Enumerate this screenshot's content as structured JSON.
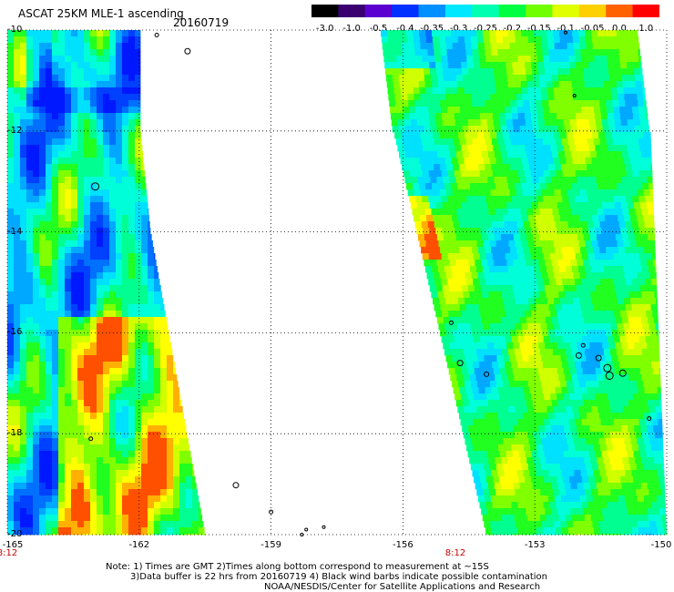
{
  "header": {
    "title": "ASCAT 25KM MLE-1 ascending",
    "date": "20160719"
  },
  "colorbar": {
    "labels": [
      "-3.0",
      "-1.0",
      "-0.5",
      "-0.4",
      "-0.35",
      "-0.3",
      "-0.25",
      "-0.2",
      "-0.15",
      "-0.1",
      "-0.05",
      "0.0",
      "1.0"
    ],
    "colors": [
      "#000000",
      "#3a0070",
      "#5a00d0",
      "#0030ff",
      "#0090ff",
      "#00e8ff",
      "#00ffb0",
      "#00ff40",
      "#70ff00",
      "#e0ff00",
      "#ffd000",
      "#ff6000",
      "#ff0000"
    ]
  },
  "axes": {
    "lat_labels": [
      "-10",
      "-12",
      "-14",
      "-16",
      "-18",
      "-20"
    ],
    "lon_labels": [
      "-165",
      "-162",
      "-159",
      "-156",
      "-153",
      "-150"
    ],
    "lat_range": [
      -20,
      -10
    ],
    "lon_range": [
      -165,
      -150
    ]
  },
  "time_labels": [
    {
      "text": "8:12",
      "lon": -165
    },
    {
      "text": "8:12",
      "lon": -154.3
    }
  ],
  "notes": [
    "Note: 1) Times are GMT 2)Times along bottom correspond to measurement at ~15S",
    "3)Data buffer is 22 hrs from 20160719 4) Black wind barbs indicate possible contamination",
    "NOAA/NESDIS/Center for Satellite Applications and Research"
  ]
}
